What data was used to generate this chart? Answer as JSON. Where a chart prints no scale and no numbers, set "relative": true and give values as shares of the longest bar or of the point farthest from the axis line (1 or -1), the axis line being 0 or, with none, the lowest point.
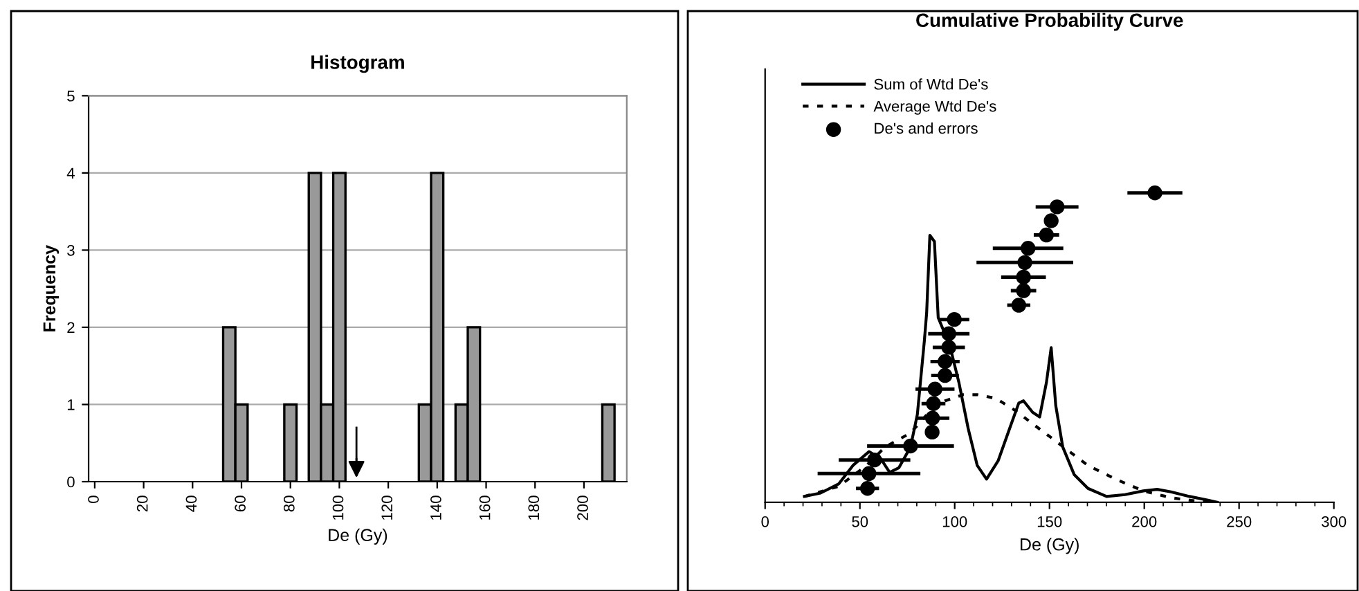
{
  "chart_data": [
    {
      "type": "histogram",
      "title": "Histogram",
      "xlabel": "De (Gy)",
      "ylabel": "Frequency",
      "bins": [
        52.5,
        57.5,
        62.5,
        67.5,
        72.5,
        77.5,
        82.5,
        87.5,
        92.5,
        97.5,
        102.5,
        107.5,
        112.5,
        117.5,
        122.5,
        127.5,
        132.5,
        137.5,
        142.5,
        147.5,
        152.5,
        157.5,
        162.5,
        167.5,
        172.5,
        177.5,
        182.5,
        187.5,
        192.5,
        197.5,
        202.5,
        207.5,
        212.5
      ],
      "values": [
        2,
        1,
        0,
        0,
        0,
        1,
        0,
        4,
        1,
        4,
        0,
        0,
        0,
        0,
        0,
        0,
        1,
        4,
        0,
        1,
        2,
        0,
        0,
        0,
        0,
        0,
        0,
        0,
        0,
        0,
        0,
        1
      ],
      "color": "#999999",
      "xlim": [
        -2.5,
        217.5
      ],
      "xticks": [
        0,
        20,
        40,
        60,
        80,
        100,
        120,
        140,
        160,
        180,
        200
      ],
      "ylim": [
        0,
        5
      ],
      "yticks": [
        0,
        1,
        2,
        3,
        4,
        5
      ],
      "grid": "y",
      "ref_lines": [
        {
          "axis": "x",
          "value": 107,
          "color": "#000000"
        }
      ]
    },
    {
      "type": "line",
      "title": "Cumulative Probability Curve",
      "xlabel": "De (Gy)",
      "relative": true,
      "xlim": [
        0,
        300
      ],
      "xticks": [
        0,
        50,
        100,
        150,
        200,
        250,
        300
      ],
      "legend": "top left",
      "series": [
        {
          "name": "Sum of Wtd De's",
          "color": "#000000",
          "line_style": "solid",
          "x": [
            20.7,
            29.2,
            38.9,
            46.3,
            54.8,
            60.9,
            65.7,
            70.6,
            76.7,
            80.3,
            84.0,
            85.2,
            86.9,
            89.3,
            91.3,
            97.4,
            102.2,
            107.1,
            111.9,
            116.8,
            122.9,
            129.0,
            133.8,
            136.3,
            141.1,
            144.8,
            148.4,
            150.9,
            153.3,
            157.0,
            163.0,
            170.3,
            180.1,
            189.8,
            199.5,
            206.8,
            214.1,
            223.9,
            233.6,
            238.5
          ],
          "values": [
            0.019,
            0.03,
            0.06,
            0.119,
            0.164,
            0.142,
            0.097,
            0.112,
            0.179,
            0.284,
            0.522,
            0.612,
            0.863,
            0.843,
            0.597,
            0.507,
            0.388,
            0.239,
            0.119,
            0.075,
            0.134,
            0.239,
            0.321,
            0.328,
            0.291,
            0.276,
            0.388,
            0.5,
            0.313,
            0.179,
            0.09,
            0.045,
            0.019,
            0.025,
            0.037,
            0.042,
            0.034,
            0.019,
            0.007,
            0
          ]
        },
        {
          "name": "Average Wtd De's",
          "color": "#000000",
          "line_style": "dotted",
          "x": [
            20.7,
            38.9,
            53.5,
            63.3,
            76.7,
            87.6,
            94.9,
            104.6,
            111.9,
            121.7,
            131.4,
            141.1,
            150.9,
            160.6,
            170.3,
            184.9,
            199.5,
            214.1,
            223.9,
            233.6
          ],
          "values": [
            0.019,
            0.052,
            0.119,
            0.179,
            0.224,
            0.299,
            0.328,
            0.348,
            0.348,
            0.336,
            0.299,
            0.254,
            0.209,
            0.164,
            0.119,
            0.075,
            0.037,
            0.015,
            0.007,
            0
          ]
        },
        {
          "name": "De's and errors",
          "type": "scatter",
          "color": "#000000",
          "marker": "circle",
          "x": [
            54.0,
            54.8,
            57.7,
            76.7,
            88.1,
            88.3,
            88.8,
            89.6,
            94.9,
            94.9,
            96.9,
            96.9,
            99.8,
            133.8,
            136.3,
            136.3,
            137.0,
            138.7,
            148.4,
            150.9,
            154.0,
            205.6
          ],
          "values": [
            0.045,
            0.093,
            0.137,
            0.182,
            0.227,
            0.272,
            0.319,
            0.366,
            0.41,
            0.455,
            0.501,
            0.545,
            0.591,
            0.637,
            0.684,
            0.728,
            0.775,
            0.821,
            0.864,
            0.91,
            0.955,
            1.0
          ],
          "xerrors": [
            6.1,
            27.1,
            18.9,
            22.9,
            null,
            8.9,
            6.3,
            10.3,
            7.3,
            7.7,
            8.5,
            10.9,
            7.9,
            6.1,
            6.7,
            11.8,
            25.5,
            18.6,
            6.7,
            null,
            11.3,
            14.5
          ]
        }
      ]
    }
  ]
}
